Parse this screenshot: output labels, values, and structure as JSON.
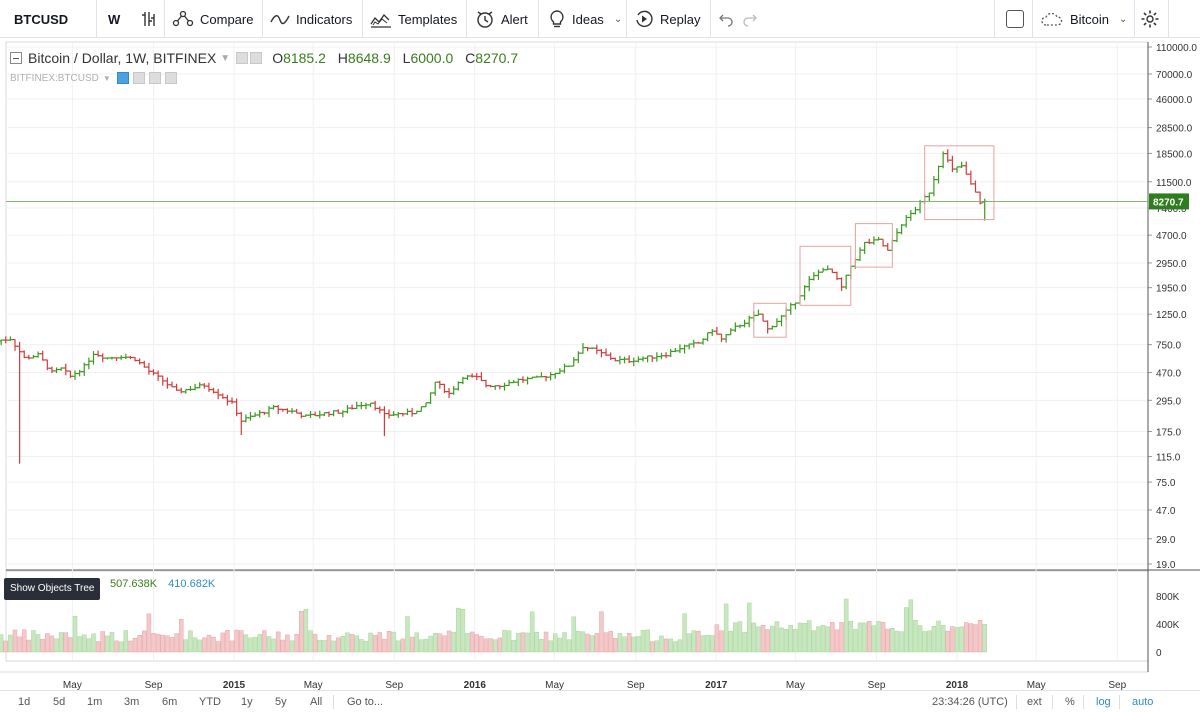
{
  "toolbar": {
    "symbol": "BTCUSD",
    "interval": "W",
    "compare_label": "Compare",
    "indicators_label": "Indicators",
    "templates_label": "Templates",
    "alert_label": "Alert",
    "ideas_label": "Ideas",
    "replay_label": "Replay",
    "layout_label": "Bitcoin",
    "icons": [
      "bar-style-icon",
      "compare-icon",
      "indicators-icon",
      "templates-icon",
      "alert-icon",
      "ideas-icon",
      "replay-icon",
      "undo-icon",
      "redo-icon",
      "fullscreen-icon",
      "cloud-icon",
      "settings-icon"
    ]
  },
  "legend": {
    "title": "Bitcoin / Dollar, 1W, BITFINEX",
    "open_key": "O",
    "open_value": "8185.2",
    "high_key": "H",
    "high_value": "8648.9",
    "low_key": "L",
    "low_value": "6000.0",
    "close_key": "C",
    "close_value": "8270.7",
    "sub_symbol": "BITFINEX:BTCUSD"
  },
  "volume_legend": {
    "value1": "507.638K",
    "value2": "410.682K",
    "tooltip": "Show Objects Tree"
  },
  "price_axis": {
    "labels": [
      "110000.0",
      "70000.0",
      "46000.0",
      "28500.0",
      "18500.0",
      "11500.0",
      "7400.0",
      "4700.0",
      "2950.0",
      "1950.0",
      "1250.0",
      "750.0",
      "470.0",
      "295.0",
      "175.0",
      "115.0",
      "75.0",
      "47.0",
      "29.0",
      "19.0"
    ],
    "current_price": "8270.7"
  },
  "volume_axis": {
    "labels": [
      "800K",
      "400K",
      "0"
    ]
  },
  "time_axis": {
    "labels": [
      "May",
      "Sep",
      "2015",
      "May",
      "Sep",
      "2016",
      "May",
      "Sep",
      "2017",
      "May",
      "Sep",
      "2018",
      "May",
      "Sep"
    ],
    "bold": [
      false,
      false,
      true,
      false,
      false,
      true,
      false,
      false,
      true,
      false,
      false,
      true,
      false,
      false
    ]
  },
  "bottombar": {
    "ranges": [
      "1d",
      "5d",
      "1m",
      "3m",
      "6m",
      "YTD",
      "1y",
      "5y",
      "All"
    ],
    "goto_label": "Go to...",
    "clock": "23:34:26 (UTC)",
    "ext_label": "ext",
    "pct_label": "%",
    "log_label": "log",
    "auto_label": "auto"
  },
  "colors": {
    "up": "#3a9a1e",
    "down": "#d43b3b",
    "volume_up": "#c8e6c0",
    "volume_down": "#f2c8c8",
    "grid": "#f0f0f0",
    "price_line": "#6fb05a",
    "price_tag_bg": "#2e7d1e",
    "highlight_box": "#e8a0a0",
    "accent": "#2f8bc9"
  },
  "chart_data": {
    "type": "ohlc",
    "interval": "1W",
    "scale": "log",
    "ylim": [
      19,
      110000
    ],
    "x_start": "2014-01",
    "x_end": "2018-10",
    "last": {
      "open": 8185.2,
      "high": 8648.9,
      "low": 6000.0,
      "close": 8270.7
    },
    "close_path": [
      [
        "2014-01-06",
        800
      ],
      [
        "2014-01-27",
        830
      ],
      [
        "2014-02-17",
        600
      ],
      [
        "2014-03-10",
        630
      ],
      [
        "2014-03-31",
        470
      ],
      [
        "2014-04-14",
        500
      ],
      [
        "2014-04-28",
        440
      ],
      [
        "2014-05-19",
        520
      ],
      [
        "2014-06-02",
        650
      ],
      [
        "2014-06-23",
        600
      ],
      [
        "2014-07-14",
        620
      ],
      [
        "2014-08-04",
        590
      ],
      [
        "2014-08-25",
        480
      ],
      [
        "2014-09-15",
        410
      ],
      [
        "2014-10-06",
        340
      ],
      [
        "2014-10-27",
        360
      ],
      [
        "2014-11-17",
        380
      ],
      [
        "2014-12-08",
        330
      ],
      [
        "2014-12-29",
        280
      ],
      [
        "2015-01-12",
        210
      ],
      [
        "2015-02-02",
        230
      ],
      [
        "2015-03-02",
        260
      ],
      [
        "2015-03-30",
        245
      ],
      [
        "2015-04-20",
        225
      ],
      [
        "2015-05-18",
        237
      ],
      [
        "2015-06-15",
        245
      ],
      [
        "2015-07-06",
        270
      ],
      [
        "2015-07-27",
        285
      ],
      [
        "2015-08-17",
        230
      ],
      [
        "2015-09-07",
        235
      ],
      [
        "2015-09-28",
        240
      ],
      [
        "2015-10-19",
        275
      ],
      [
        "2015-11-02",
        400
      ],
      [
        "2015-11-23",
        330
      ],
      [
        "2015-12-14",
        440
      ],
      [
        "2016-01-04",
        430
      ],
      [
        "2016-01-18",
        380
      ],
      [
        "2016-02-08",
        380
      ],
      [
        "2016-03-07",
        415
      ],
      [
        "2016-04-04",
        425
      ],
      [
        "2016-04-25",
        455
      ],
      [
        "2016-05-23",
        530
      ],
      [
        "2016-06-13",
        730
      ],
      [
        "2016-07-04",
        670
      ],
      [
        "2016-08-01",
        580
      ],
      [
        "2016-08-22",
        575
      ],
      [
        "2016-09-19",
        605
      ],
      [
        "2016-10-17",
        640
      ],
      [
        "2016-11-07",
        710
      ],
      [
        "2016-12-05",
        770
      ],
      [
        "2016-12-26",
        960
      ],
      [
        "2017-01-09",
        820
      ],
      [
        "2017-01-30",
        1000
      ],
      [
        "2017-02-20",
        1150
      ],
      [
        "2017-03-06",
        1250
      ],
      [
        "2017-03-20",
        970
      ],
      [
        "2017-04-10",
        1200
      ],
      [
        "2017-05-01",
        1550
      ],
      [
        "2017-05-22",
        2200
      ],
      [
        "2017-06-12",
        2700
      ],
      [
        "2017-06-26",
        2500
      ],
      [
        "2017-07-10",
        1950
      ],
      [
        "2017-07-24",
        2800
      ],
      [
        "2017-08-14",
        4100
      ],
      [
        "2017-09-04",
        4300
      ],
      [
        "2017-09-18",
        3600
      ],
      [
        "2017-10-09",
        5700
      ],
      [
        "2017-10-30",
        7300
      ],
      [
        "2017-11-20",
        9700
      ],
      [
        "2017-12-11",
        19000
      ],
      [
        "2017-12-25",
        14000
      ],
      [
        "2018-01-08",
        15000
      ],
      [
        "2018-01-22",
        11000
      ],
      [
        "2018-02-05",
        8185.2
      ],
      [
        "2018-02-12",
        8270.7
      ]
    ]
  }
}
